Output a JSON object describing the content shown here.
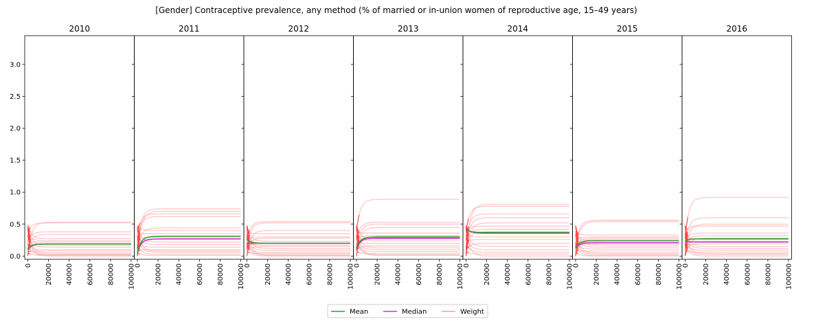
{
  "chart_data": {
    "type": "line",
    "title": "[Gender] Contraceptive prevalence, any method (% of married or in-union women of reproductive age, 15–49 years)",
    "xlabel": "",
    "ylabel": "",
    "xlim": [
      -3000,
      103000
    ],
    "ylim": [
      -0.05,
      3.45
    ],
    "xticks": [
      "0",
      "20000",
      "40000",
      "60000",
      "80000",
      "100000"
    ],
    "yticks": [
      "0.0",
      "0.5",
      "1.0",
      "1.5",
      "2.0",
      "2.5",
      "3.0"
    ],
    "x_points": [
      0,
      500,
      1000,
      2000,
      3000,
      5000,
      7500,
      10000,
      15000,
      20000,
      30000,
      40000,
      50000,
      60000,
      70000,
      80000,
      90000,
      100000
    ],
    "legend": {
      "placement": "bottom-center",
      "entries": [
        {
          "label": "Mean",
          "color": "#2ca02c"
        },
        {
          "label": "Median",
          "color": "#cc33cc"
        },
        {
          "label": "Weight",
          "color": "#ff9999"
        }
      ]
    },
    "colors": {
      "mean": "#2ca02c",
      "median": "#cc33cc",
      "weight": "#ff9a9a",
      "weight_dense": "#ff2020"
    },
    "panels": [
      {
        "title": "2010",
        "mean": 0.19,
        "median": 0.19,
        "mean_start": 0.1,
        "median_start": 0.12,
        "weights": [
          0.53,
          0.52,
          0.38,
          0.34,
          0.27,
          0.24,
          0.22,
          0.19,
          0.17,
          0.14,
          0.1,
          0.08,
          0.05,
          0.03,
          0.02,
          0.01,
          0.0
        ]
      },
      {
        "title": "2011",
        "mean": 0.31,
        "median": 0.27,
        "mean_start": 0.05,
        "median_start": 0.04,
        "weights": [
          0.74,
          0.7,
          0.66,
          0.62,
          0.44,
          0.4,
          0.35,
          0.3,
          0.26,
          0.22,
          0.18,
          0.14,
          0.1,
          0.08,
          0.06,
          0.03,
          0.01
        ]
      },
      {
        "title": "2012",
        "mean": 0.2,
        "median": 0.2,
        "mean_start": 0.26,
        "median_start": 0.2,
        "weights": [
          0.54,
          0.52,
          0.4,
          0.35,
          0.3,
          0.28,
          0.23,
          0.2,
          0.17,
          0.15,
          0.12,
          0.09,
          0.06,
          0.04,
          0.02,
          0.01,
          0.0
        ]
      },
      {
        "title": "2013",
        "mean": 0.3,
        "median": 0.28,
        "mean_start": 0.12,
        "median_start": 0.1,
        "weights": [
          0.89,
          0.53,
          0.5,
          0.45,
          0.36,
          0.32,
          0.3,
          0.27,
          0.24,
          0.2,
          0.16,
          0.13,
          0.1,
          0.07,
          0.04,
          0.02,
          0.01
        ]
      },
      {
        "title": "2014",
        "mean": 0.37,
        "median": 0.36,
        "mean_start": 0.42,
        "median_start": 0.44,
        "weights": [
          0.81,
          0.78,
          0.66,
          0.6,
          0.52,
          0.47,
          0.42,
          0.38,
          0.35,
          0.3,
          0.26,
          0.2,
          0.15,
          0.1,
          0.06,
          0.03,
          0.0
        ]
      },
      {
        "title": "2015",
        "mean": 0.24,
        "median": 0.21,
        "mean_start": 0.13,
        "median_start": 0.12,
        "weights": [
          0.56,
          0.54,
          0.33,
          0.3,
          0.28,
          0.26,
          0.24,
          0.21,
          0.19,
          0.17,
          0.14,
          0.11,
          0.08,
          0.05,
          0.03,
          0.01,
          0.0
        ]
      },
      {
        "title": "2016",
        "mean": 0.27,
        "median": 0.22,
        "mean_start": 0.24,
        "median_start": 0.23,
        "weights": [
          0.92,
          0.6,
          0.5,
          0.47,
          0.36,
          0.32,
          0.28,
          0.26,
          0.23,
          0.19,
          0.15,
          0.12,
          0.09,
          0.06,
          0.04,
          0.02,
          0.0
        ]
      }
    ]
  }
}
